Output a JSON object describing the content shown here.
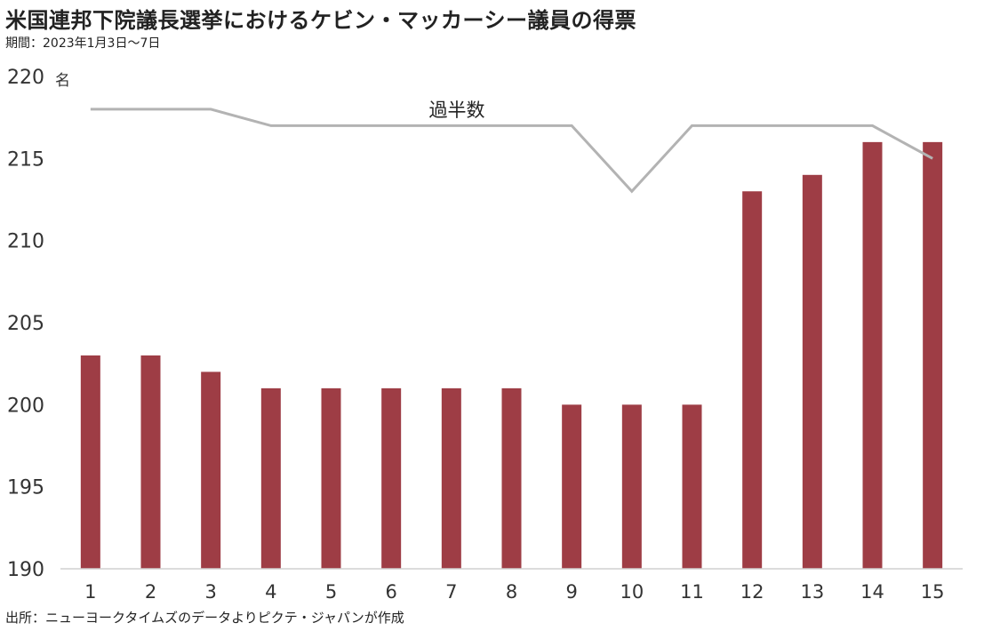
{
  "title": "米国連邦下院議長選挙におけるケビン・マッカーシー議員の得票",
  "subtitle": "期間：2023年1月3日～7日",
  "source": "出所：ニューヨークタイムズのデータよりピクテ・ジャパンが作成",
  "chart_data": {
    "type": "bar",
    "unit": "名",
    "categories": [
      "1",
      "2",
      "3",
      "4",
      "5",
      "6",
      "7",
      "8",
      "9",
      "10",
      "11",
      "12",
      "13",
      "14",
      "15"
    ],
    "values": [
      203,
      203,
      202,
      201,
      201,
      201,
      201,
      201,
      200,
      200,
      200,
      213,
      214,
      216,
      216
    ],
    "majority": {
      "label": "過半数",
      "values": [
        218,
        218,
        218,
        217,
        217,
        217,
        217,
        217,
        217,
        213,
        217,
        217,
        217,
        217,
        215
      ]
    },
    "ylim": [
      190,
      220
    ],
    "yticks": [
      190,
      195,
      200,
      205,
      210,
      215,
      220
    ],
    "bar_color": "#9e3d45",
    "line_color": "#b3b3b3",
    "grid": false
  }
}
